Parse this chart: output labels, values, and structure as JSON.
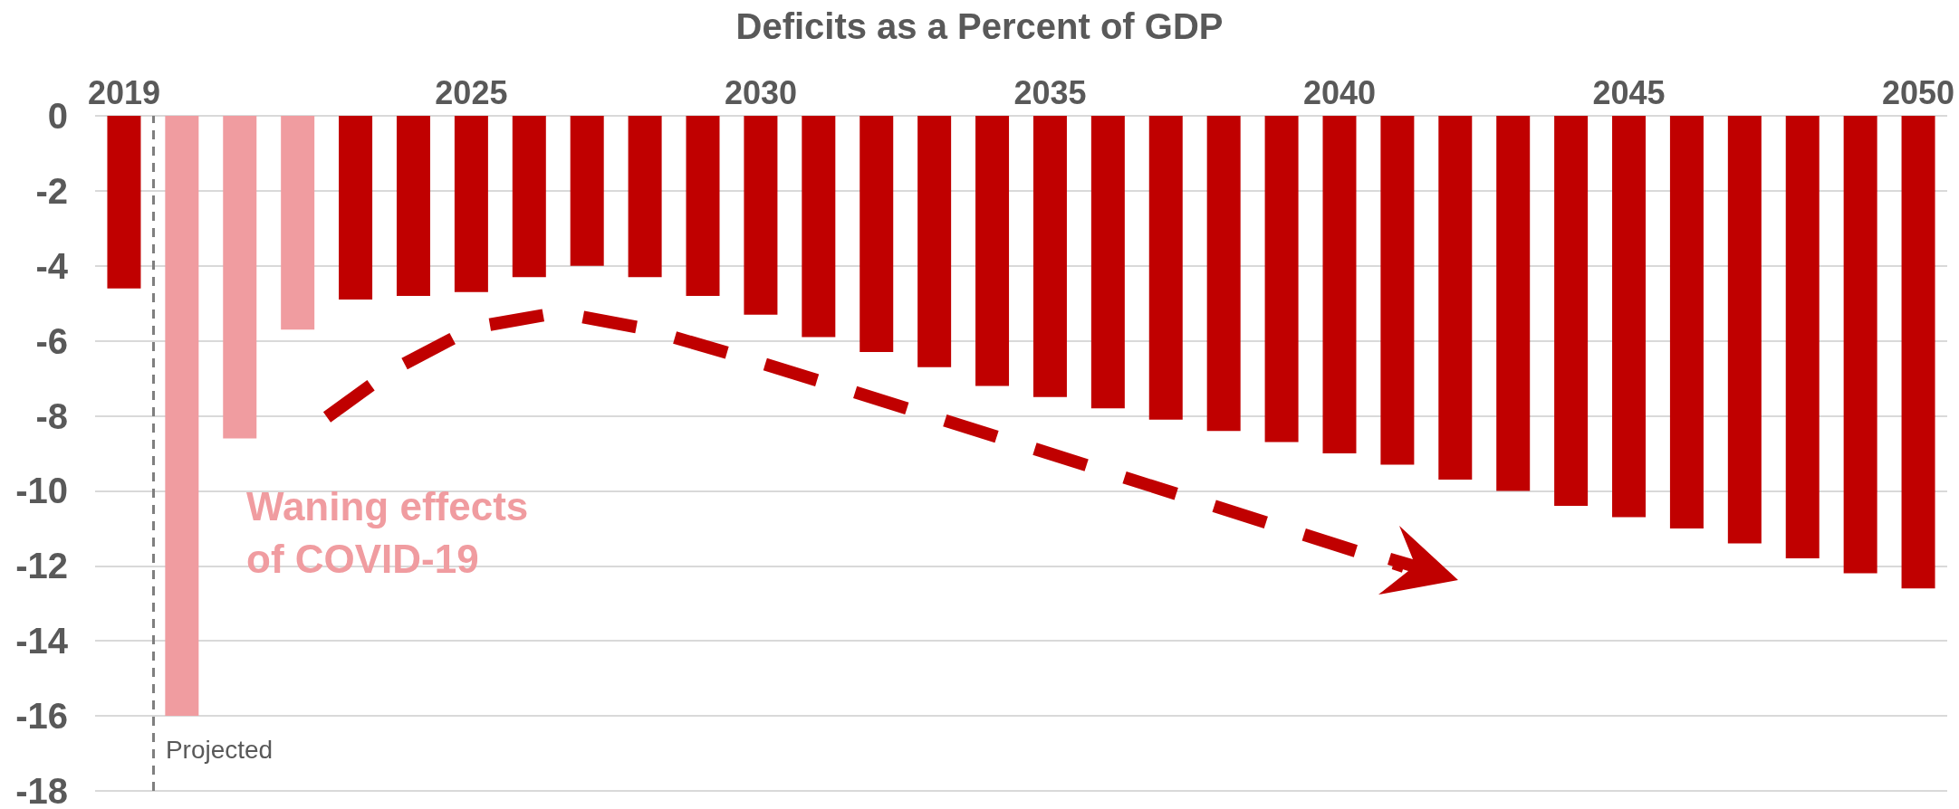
{
  "chart_data": {
    "type": "bar",
    "title": "Deficits as a Percent of GDP",
    "x": [
      2019,
      2020,
      2021,
      2022,
      2023,
      2024,
      2025,
      2026,
      2027,
      2028,
      2029,
      2030,
      2031,
      2032,
      2033,
      2034,
      2035,
      2036,
      2037,
      2038,
      2039,
      2040,
      2041,
      2042,
      2043,
      2044,
      2045,
      2046,
      2047,
      2048,
      2049,
      2050
    ],
    "values": [
      -4.6,
      -16.0,
      -8.6,
      -5.7,
      -4.9,
      -4.8,
      -4.7,
      -4.3,
      -4.0,
      -4.3,
      -4.8,
      -5.3,
      -5.9,
      -6.3,
      -6.7,
      -7.2,
      -7.5,
      -7.8,
      -8.1,
      -8.4,
      -8.7,
      -9.0,
      -9.3,
      -9.7,
      -10.0,
      -10.4,
      -10.7,
      -11.0,
      -11.4,
      -11.8,
      -12.2,
      -12.6
    ],
    "colors": [
      "#c00000",
      "#f09ca0",
      "#f09ca0",
      "#f09ca0",
      "#c00000",
      "#c00000",
      "#c00000",
      "#c00000",
      "#c00000",
      "#c00000",
      "#c00000",
      "#c00000",
      "#c00000",
      "#c00000",
      "#c00000",
      "#c00000",
      "#c00000",
      "#c00000",
      "#c00000",
      "#c00000",
      "#c00000",
      "#c00000",
      "#c00000",
      "#c00000",
      "#c00000",
      "#c00000",
      "#c00000",
      "#c00000",
      "#c00000",
      "#c00000",
      "#c00000",
      "#c00000"
    ],
    "xlim": [
      2018.5,
      2050.5
    ],
    "xticks": [
      2019,
      2025,
      2030,
      2035,
      2040,
      2045,
      2050
    ],
    "ylim": [
      -18,
      0
    ],
    "yticks": [
      -18,
      -16,
      -14,
      -12,
      -10,
      -8,
      -6,
      -4,
      -2,
      0
    ],
    "grid": "y",
    "ref_lines": [
      {
        "axis": "x",
        "value": 2019.5,
        "label": "Projected",
        "color": "#7f7f7f",
        "line_style": "dashed"
      }
    ],
    "annotations": [
      "Waning effects\nof COVID-19"
    ]
  }
}
